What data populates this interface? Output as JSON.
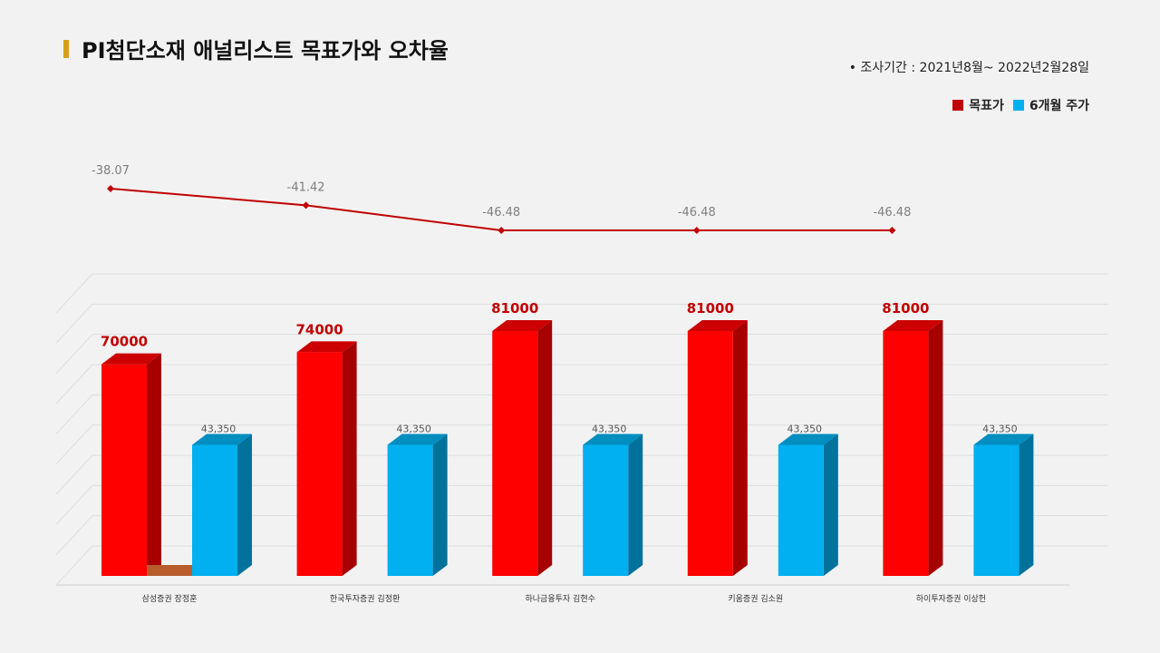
{
  "title": "PI첨단소재 애널리스트 목표가와 오차율",
  "period": "•  조사기간 : 2021년8월~ 2022년2월28일",
  "legend": {
    "target_label": "목표가",
    "price_label": "6개월 주가"
  },
  "colors": {
    "target": "#ff0000",
    "price": "#00b0f0",
    "line": "#c00000",
    "title_accent": "#d4a017"
  },
  "chart_data": [
    {
      "type": "line",
      "categories": [
        "삼성증권 장정훈",
        "한국투자증권 김정환",
        "하나금융투자 김현수",
        "키움증권 김소원",
        "하이투자증권 이상헌"
      ],
      "series": [
        {
          "values": [
            -38.07,
            -41.42,
            -46.48,
            -46.48,
            -46.48
          ]
        }
      ],
      "data_labels": [
        "-38.07",
        "-41.42",
        "-46.48",
        "-46.48",
        "-46.48"
      ]
    },
    {
      "type": "bar",
      "categories": [
        "삼성증권 장정훈",
        "한국투자증권 김정환",
        "하나금융투자 김현수",
        "키움증권 김소원",
        "하이투자증권 이상헌"
      ],
      "series": [
        {
          "name": "목표가",
          "values": [
            70000,
            74000,
            81000,
            81000,
            81000
          ],
          "labels": [
            "70000",
            "74000",
            "81000",
            "81000",
            "81000"
          ]
        },
        {
          "name": "6개월 주가",
          "values": [
            43350,
            43350,
            43350,
            43350,
            43350
          ],
          "labels": [
            "43,350",
            "43,350",
            "43,350",
            "43,350",
            "43,350"
          ]
        }
      ],
      "ylim": [
        0,
        90000
      ],
      "grid": true
    }
  ]
}
